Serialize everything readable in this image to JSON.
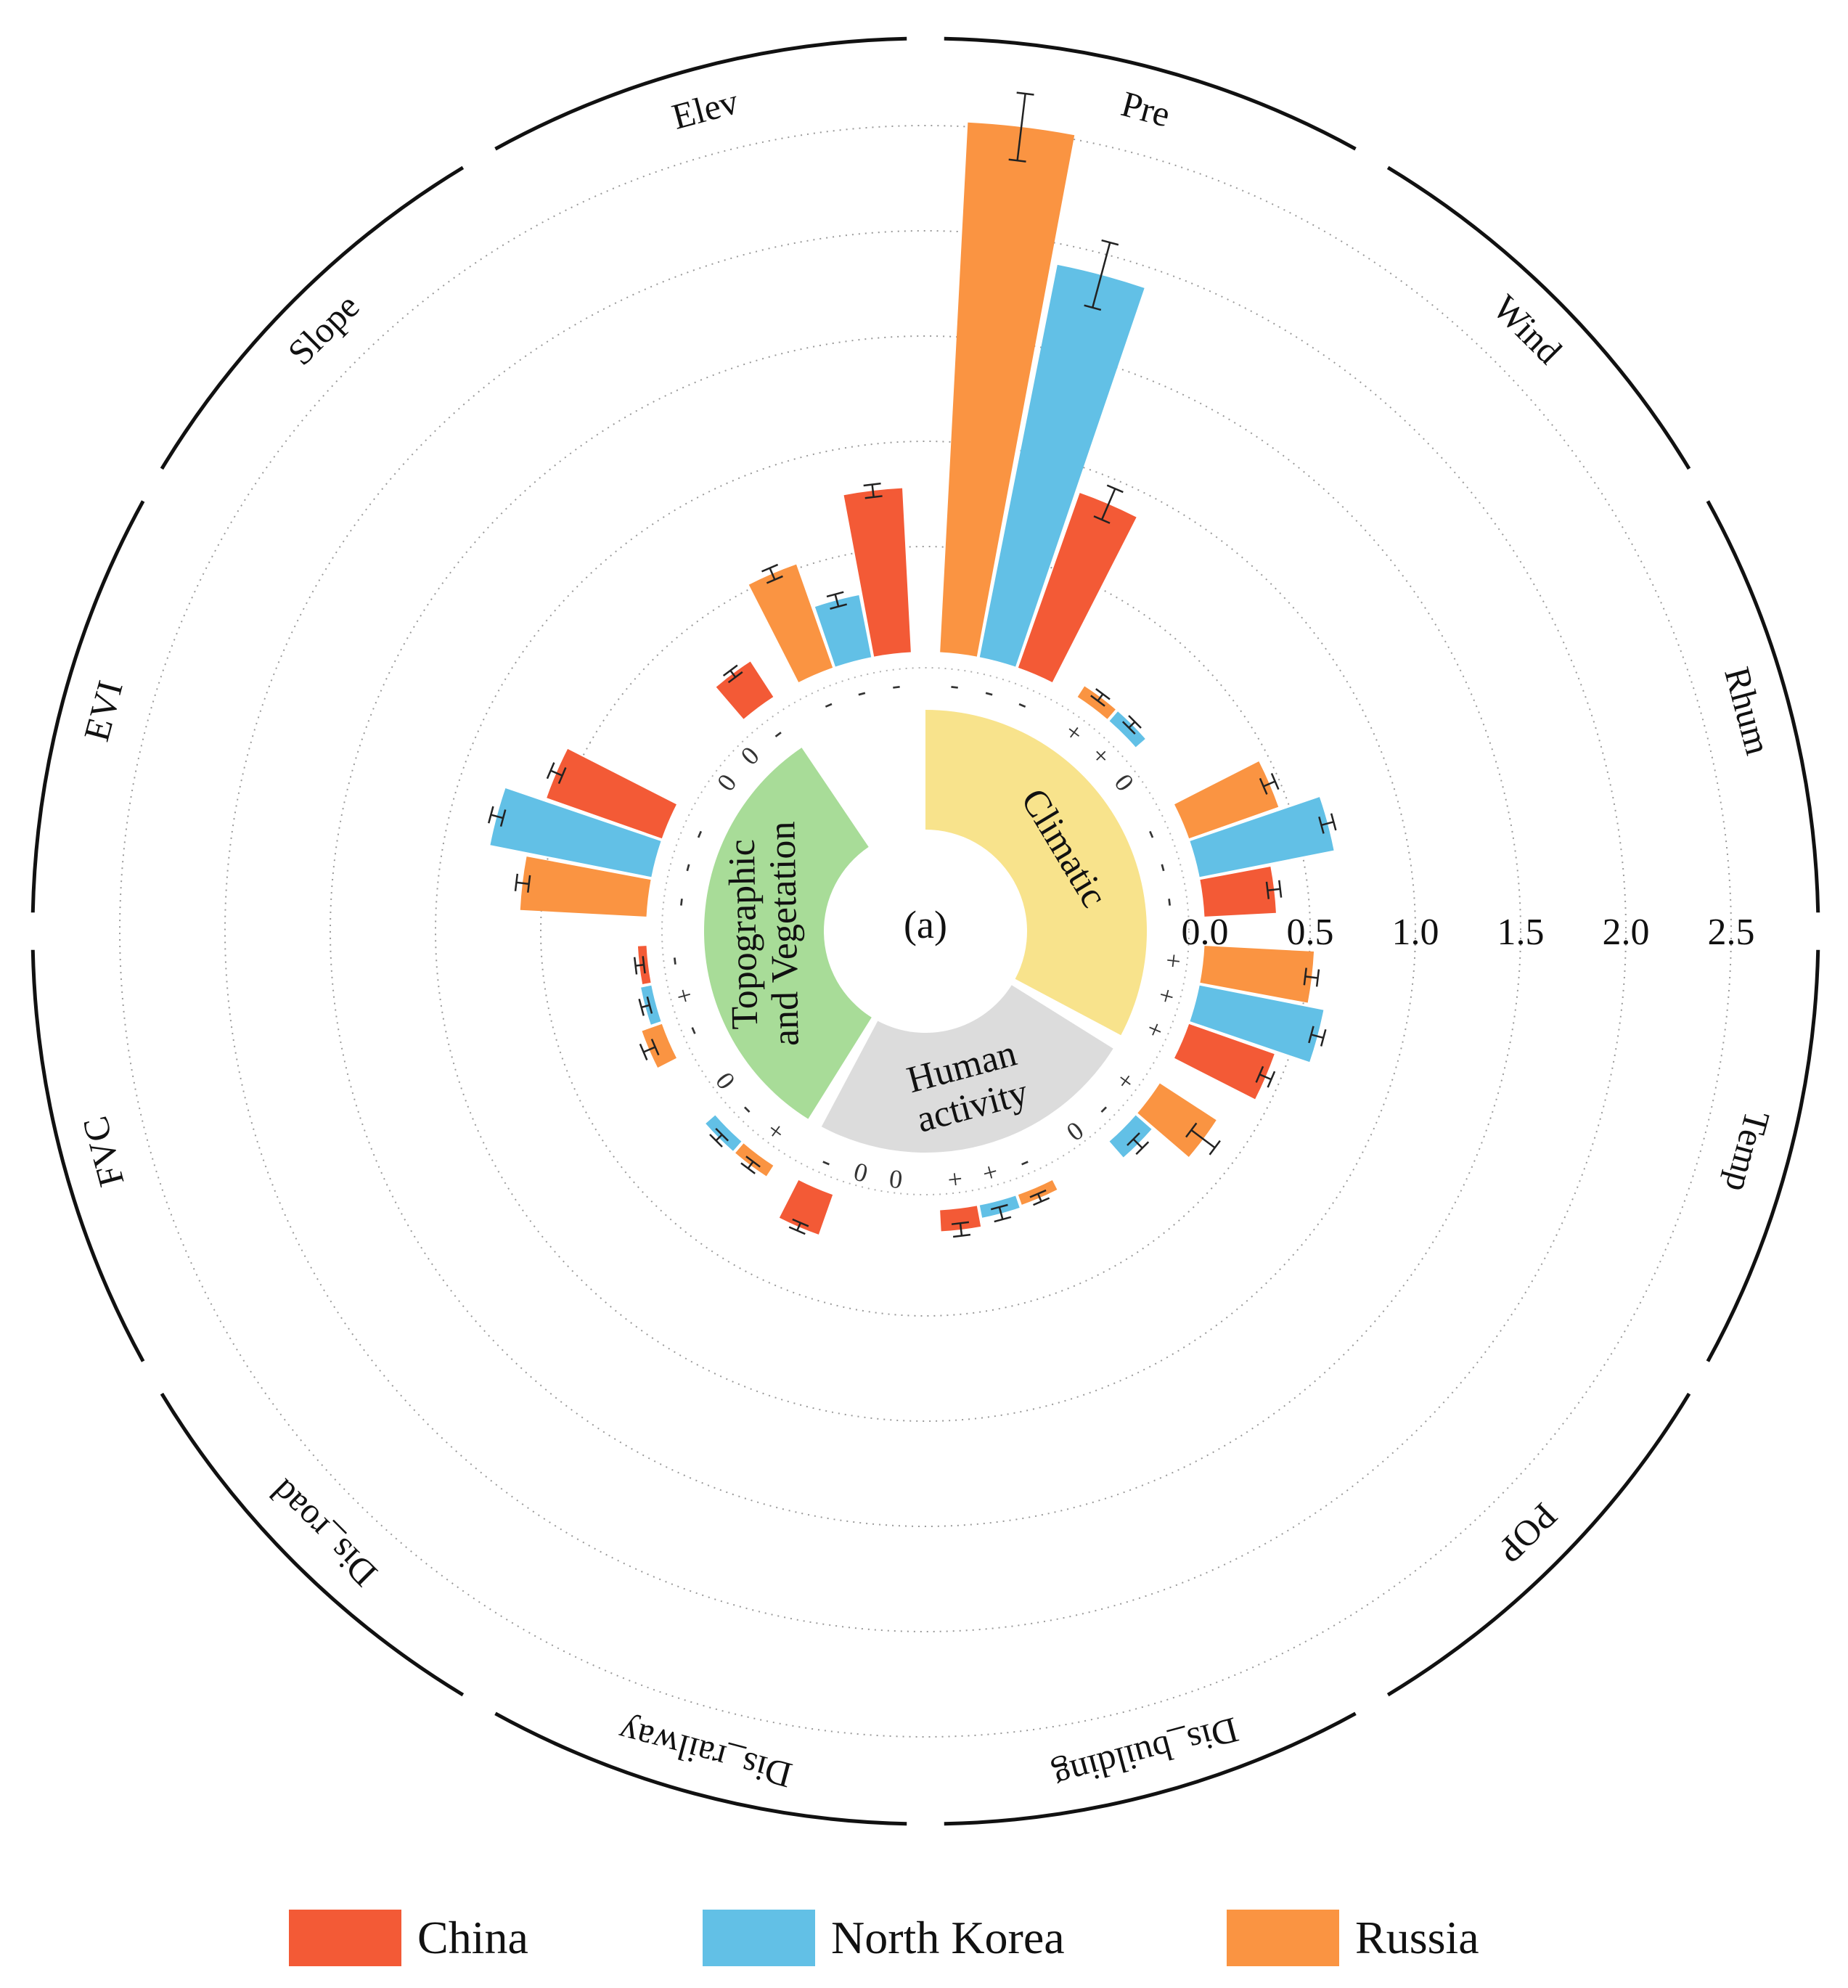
{
  "panel_label": "(a)",
  "colors": {
    "China": "#f35a36",
    "North Korea": "#62c0e6",
    "Russia": "#fa9442",
    "Climatic": "#f8e38c",
    "Human activity": "#dcdcdc",
    "Topographic and Vegetation": "#a8dc98"
  },
  "legend": [
    {
      "name": "China",
      "color": "#f35a36"
    },
    {
      "name": "North Korea",
      "color": "#62c0e6"
    },
    {
      "name": "Russia",
      "color": "#fa9442"
    }
  ],
  "groups": [
    {
      "name": "Climatic",
      "lines": [
        "Climatic"
      ],
      "color": "#f8e38c"
    },
    {
      "name": "Human activity",
      "lines": [
        "Human",
        "activity"
      ],
      "color": "#dcdcdc"
    },
    {
      "name": "Topographic and Vegetation",
      "lines": [
        "Topographic",
        "and Vegetation"
      ],
      "color": "#a8dc98"
    }
  ],
  "chart_data": {
    "type": "bar",
    "polar": true,
    "radial_axis": {
      "ticks": [
        "0.0",
        "0.5",
        "1.0",
        "1.5",
        "2.0",
        "2.5"
      ],
      "range": [
        0,
        2.5
      ],
      "grid": "dotted"
    },
    "series_names": [
      "China",
      "North Korea",
      "Russia"
    ],
    "categories": [
      {
        "name": "Pre",
        "group": "Climatic",
        "values": {
          "China": 0.88,
          "North Korea": 1.9,
          "Russia": 2.52
        },
        "errors": {
          "China": 0.08,
          "North Korea": 0.16,
          "Russia": 0.16
        },
        "signs": {
          "China": "-",
          "North Korea": "-",
          "Russia": "-"
        }
      },
      {
        "name": "Wind",
        "group": "Climatic",
        "values": {
          "China": 0.0,
          "North Korea": 0.06,
          "Russia": 0.06
        },
        "errors": {
          "China": 0.0,
          "North Korea": 0.02,
          "Russia": 0.02
        },
        "signs": {
          "China": "0",
          "North Korea": "+",
          "Russia": "+"
        }
      },
      {
        "name": "Rhum",
        "group": "Climatic",
        "values": {
          "China": 0.34,
          "North Korea": 0.65,
          "Russia": 0.45
        },
        "errors": {
          "China": 0.03,
          "North Korea": 0.03,
          "Russia": 0.03
        },
        "signs": {
          "China": "-",
          "North Korea": "-",
          "Russia": "-"
        }
      },
      {
        "name": "Temp",
        "group": "Climatic",
        "values": {
          "China": 0.43,
          "North Korea": 0.6,
          "Russia": 0.52
        },
        "errors": {
          "China": 0.03,
          "North Korea": 0.03,
          "Russia": 0.03
        },
        "signs": {
          "China": "+",
          "North Korea": "+",
          "Russia": "+"
        }
      },
      {
        "name": "POP",
        "group": "Human activity",
        "values": {
          "China": 0.0,
          "North Korea": 0.1,
          "Russia": 0.32
        },
        "errors": {
          "China": 0.0,
          "North Korea": 0.03,
          "Russia": 0.07
        },
        "signs": {
          "China": "0",
          "North Korea": "-",
          "Russia": "+"
        }
      },
      {
        "name": "Dis_building",
        "group": "Human activity",
        "values": {
          "China": 0.1,
          "North Korea": 0.06,
          "Russia": 0.05
        },
        "errors": {
          "China": 0.03,
          "North Korea": 0.03,
          "Russia": 0.02
        },
        "signs": {
          "China": "+",
          "North Korea": "+",
          "Russia": "-"
        }
      },
      {
        "name": "Dis_railway",
        "group": "Human activity",
        "values": {
          "China": 0.2,
          "North Korea": 0.0,
          "Russia": 0.0
        },
        "errors": {
          "China": 0.02,
          "North Korea": 0.0,
          "Russia": 0.0
        },
        "signs": {
          "China": "-",
          "North Korea": "0",
          "Russia": "0"
        }
      },
      {
        "name": "Dis_road",
        "group": "Topographic and Vegetation",
        "values": {
          "China": 0.0,
          "North Korea": 0.06,
          "Russia": 0.06
        },
        "errors": {
          "China": 0.0,
          "North Korea": 0.02,
          "Russia": 0.02
        },
        "signs": {
          "China": "0",
          "North Korea": "-",
          "Russia": "+"
        }
      },
      {
        "name": "FVC",
        "group": "Topographic and Vegetation",
        "values": {
          "China": 0.04,
          "North Korea": 0.05,
          "Russia": 0.1
        },
        "errors": {
          "China": 0.02,
          "North Korea": 0.02,
          "Russia": 0.03
        },
        "signs": {
          "China": "-",
          "North Korea": "+",
          "Russia": "-"
        }
      },
      {
        "name": "EVI",
        "group": "Topographic and Vegetation",
        "values": {
          "China": 0.58,
          "North Korea": 0.78,
          "Russia": 0.6
        },
        "errors": {
          "China": 0.03,
          "North Korea": 0.03,
          "Russia": 0.03
        },
        "signs": {
          "China": "-",
          "North Korea": "-",
          "Russia": "-"
        }
      },
      {
        "name": "Slope",
        "group": "Topographic and Vegetation",
        "values": {
          "China": 0.2,
          "North Korea": 0.0,
          "Russia": 0.0
        },
        "errors": {
          "China": 0.02,
          "North Korea": 0.0,
          "Russia": 0.0
        },
        "signs": {
          "China": "-",
          "North Korea": "0",
          "Russia": "0"
        }
      },
      {
        "name": "Elev",
        "group": "Topographic and Vegetation",
        "values": {
          "China": 0.78,
          "North Korea": 0.3,
          "Russia": 0.52
        },
        "errors": {
          "China": 0.03,
          "North Korea": 0.03,
          "Russia": 0.03
        },
        "signs": {
          "China": "-",
          "North Korea": "-",
          "Russia": "-"
        }
      }
    ]
  }
}
